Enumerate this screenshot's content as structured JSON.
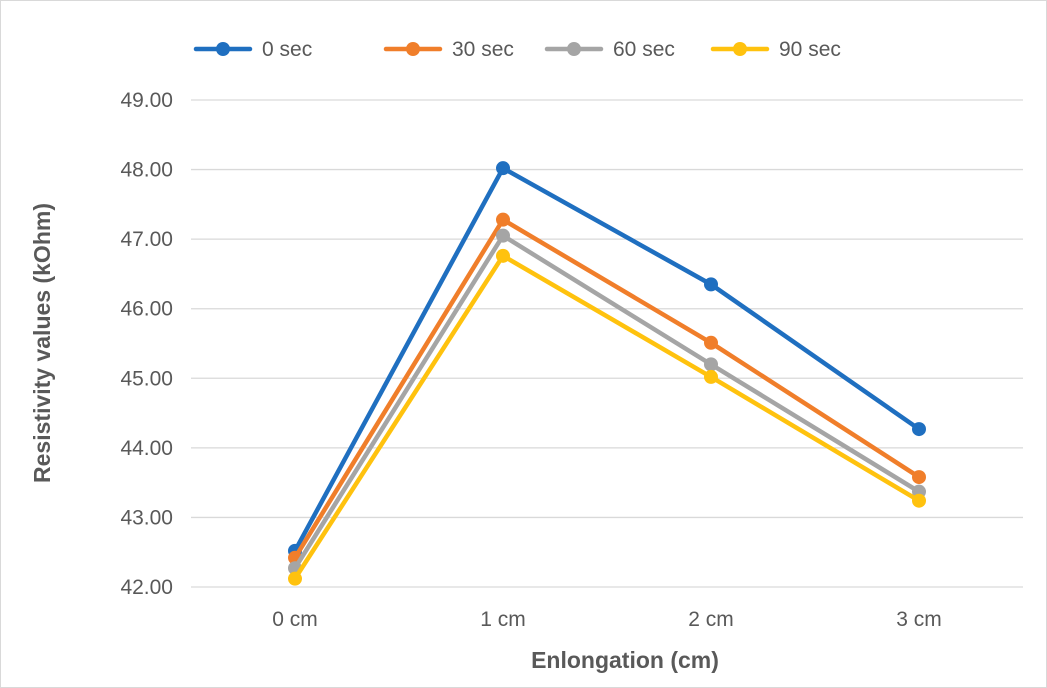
{
  "chart_data": {
    "type": "line",
    "title": "",
    "xlabel": "Enlongation (cm)",
    "ylabel": "Resistivity values (kOhm)",
    "categories": [
      "0 cm",
      "1 cm",
      "2 cm",
      "3 cm"
    ],
    "ylim": [
      42.0,
      49.0
    ],
    "yticks": [
      "42.00",
      "43.00",
      "44.00",
      "45.00",
      "46.00",
      "47.00",
      "48.00",
      "49.00"
    ],
    "grid": "horizontal",
    "legend_position": "top",
    "series": [
      {
        "name": "0 sec",
        "color": "#1f6fc0",
        "values": [
          42.52,
          48.02,
          46.35,
          44.27
        ]
      },
      {
        "name": "30 sec",
        "color": "#f07e2a",
        "values": [
          42.42,
          47.28,
          45.51,
          43.58
        ]
      },
      {
        "name": "60 sec",
        "color": "#a5a5a5",
        "values": [
          42.27,
          47.05,
          45.2,
          43.37
        ]
      },
      {
        "name": "90 sec",
        "color": "#ffc20e",
        "values": [
          42.12,
          46.76,
          45.02,
          43.24
        ]
      }
    ]
  }
}
